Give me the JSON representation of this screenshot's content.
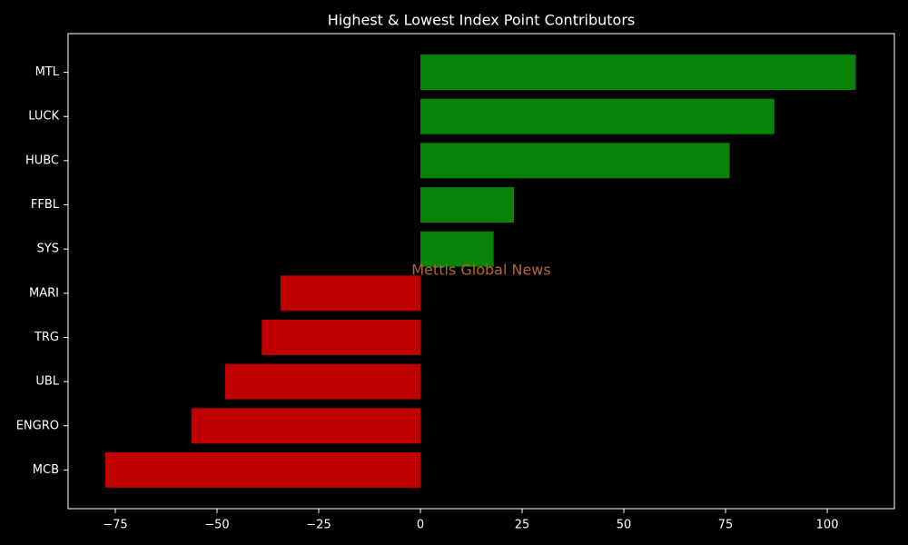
{
  "chart_data": {
    "type": "barh",
    "title": "Highest & Lowest Index Point Contributors",
    "watermark": "Mettis Global News",
    "categories": [
      "MTL",
      "LUCK",
      "HUBC",
      "FFBL",
      "SYS",
      "MARI",
      "TRG",
      "UBL",
      "ENGRO",
      "MCB"
    ],
    "values": [
      107,
      87,
      76,
      23,
      18,
      -34.4,
      -39,
      -48,
      -56.3,
      -77.5
    ],
    "colors": [
      "#078407",
      "#078407",
      "#078407",
      "#078407",
      "#078407",
      "#c00000",
      "#c00000",
      "#c00000",
      "#c00000",
      "#c00000"
    ],
    "xlim": [
      -86.6,
      116.5
    ],
    "xticks": [
      {
        "value": -75,
        "label": "−75"
      },
      {
        "value": -50,
        "label": "−50"
      },
      {
        "value": -25,
        "label": "−25"
      },
      0,
      25,
      50,
      75,
      100
    ],
    "grid": false
  }
}
